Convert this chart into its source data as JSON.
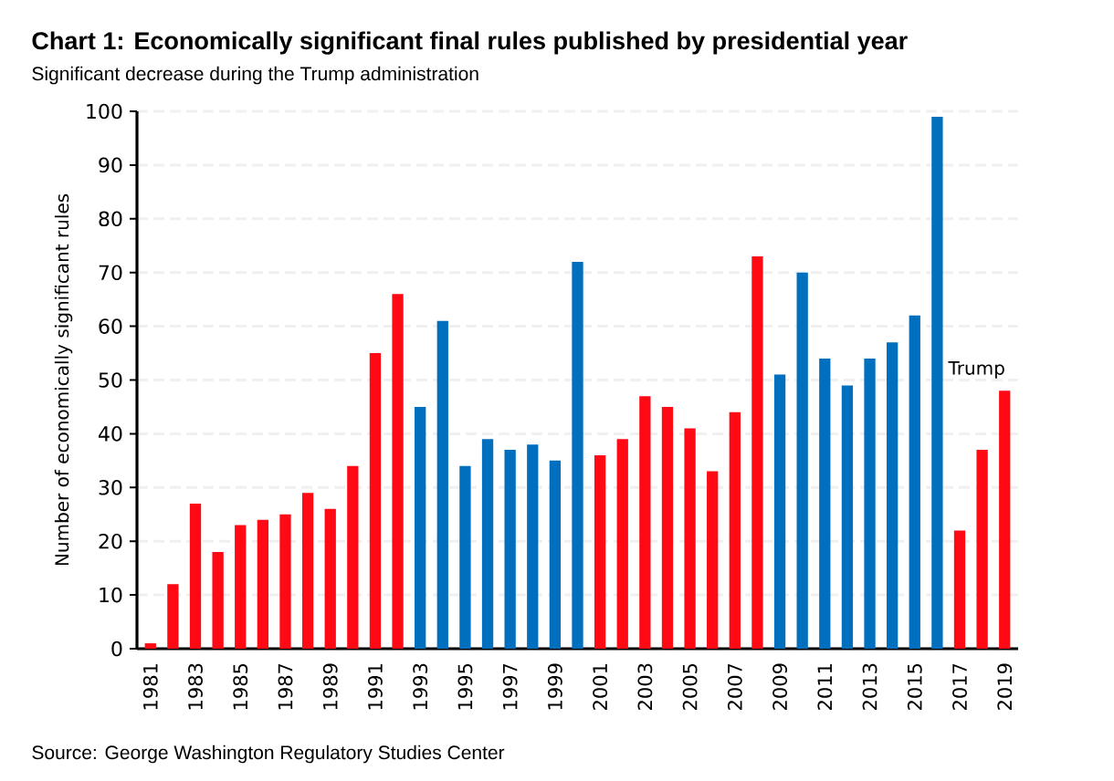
{
  "chart_data": {
    "type": "bar",
    "title": "Chart 1: Economically significant final rules published by presidential year",
    "subtitle": "Significant decrease during the Trump administration",
    "ylabel": "Number of economically significant rules",
    "categories": [
      "1981",
      null,
      "1983",
      null,
      "1985",
      null,
      "1987",
      null,
      "1989",
      null,
      "1991",
      null,
      "1993",
      null,
      "1995",
      null,
      "1997",
      null,
      "1999",
      null,
      "2001",
      null,
      "2003",
      null,
      "2005",
      null,
      "2007",
      null,
      "2009",
      null,
      "2011",
      null,
      "2013",
      null,
      "2015",
      null,
      "2017",
      null,
      "2019"
    ],
    "values": [
      1,
      12,
      27,
      18,
      23,
      24,
      25,
      29,
      26,
      34,
      55,
      66,
      45,
      61,
      34,
      39,
      37,
      38,
      35,
      72,
      36,
      39,
      47,
      45,
      41,
      33,
      44,
      73,
      51,
      70,
      54,
      49,
      54,
      57,
      62,
      99,
      22,
      37,
      48
    ],
    "colors": [
      "#ff0a14",
      "#ff0a14",
      "#ff0a14",
      "#ff0a14",
      "#ff0a14",
      "#ff0a14",
      "#ff0a14",
      "#ff0a14",
      "#ff0a14",
      "#ff0a14",
      "#ff0a14",
      "#ff0a14",
      "#006fbd",
      "#006fbd",
      "#006fbd",
      "#006fbd",
      "#006fbd",
      "#006fbd",
      "#006fbd",
      "#006fbd",
      "#ff0a14",
      "#ff0a14",
      "#ff0a14",
      "#ff0a14",
      "#ff0a14",
      "#ff0a14",
      "#ff0a14",
      "#ff0a14",
      "#006fbd",
      "#006fbd",
      "#006fbd",
      "#006fbd",
      "#006fbd",
      "#006fbd",
      "#006fbd",
      "#006fbd",
      "#ff0a14",
      "#ff0a14",
      "#ff0a14"
    ],
    "ylim": [
      0,
      100
    ],
    "yticks": [
      0,
      10,
      20,
      30,
      40,
      50,
      60,
      70,
      80,
      90,
      100
    ],
    "grid": "y",
    "annotations": [
      "Trump",
      "Source: George Washington Regulatory Studies Center"
    ]
  }
}
